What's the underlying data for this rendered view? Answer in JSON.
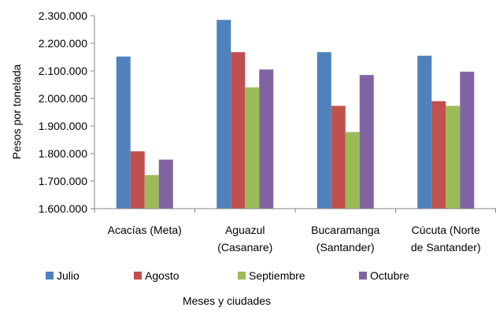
{
  "chart_data": {
    "type": "bar",
    "categories": [
      [
        "Acacías (Meta)"
      ],
      [
        "Aguazul",
        "(Casanare)"
      ],
      [
        "Bucaramanga",
        "(Santander)"
      ],
      [
        "Cúcuta (Norte",
        "de Santander)"
      ]
    ],
    "series": [
      {
        "name": "Julio",
        "color": "#4F81BD",
        "values": [
          2152000,
          2285000,
          2168000,
          2155000
        ]
      },
      {
        "name": "Agosto",
        "color": "#C0504D",
        "values": [
          1808000,
          2168000,
          1973000,
          1990000
        ]
      },
      {
        "name": "Septiembre",
        "color": "#9BBB59",
        "values": [
          1722000,
          2040000,
          1878000,
          1973000
        ]
      },
      {
        "name": "Octubre",
        "color": "#8064A2",
        "values": [
          1778000,
          2105000,
          2085000,
          2097000
        ]
      }
    ],
    "ylim": [
      1600000,
      2300000
    ],
    "yticks": [
      "1.600.000",
      "1.700.000",
      "1.800.000",
      "1.900.000",
      "2.000.000",
      "2.100.000",
      "2.200.000",
      "2.300.000"
    ],
    "ylabel": "Pesos por tonelada",
    "xlabel": "Meses y ciudades",
    "legend_position": "bottom",
    "grid": false
  }
}
